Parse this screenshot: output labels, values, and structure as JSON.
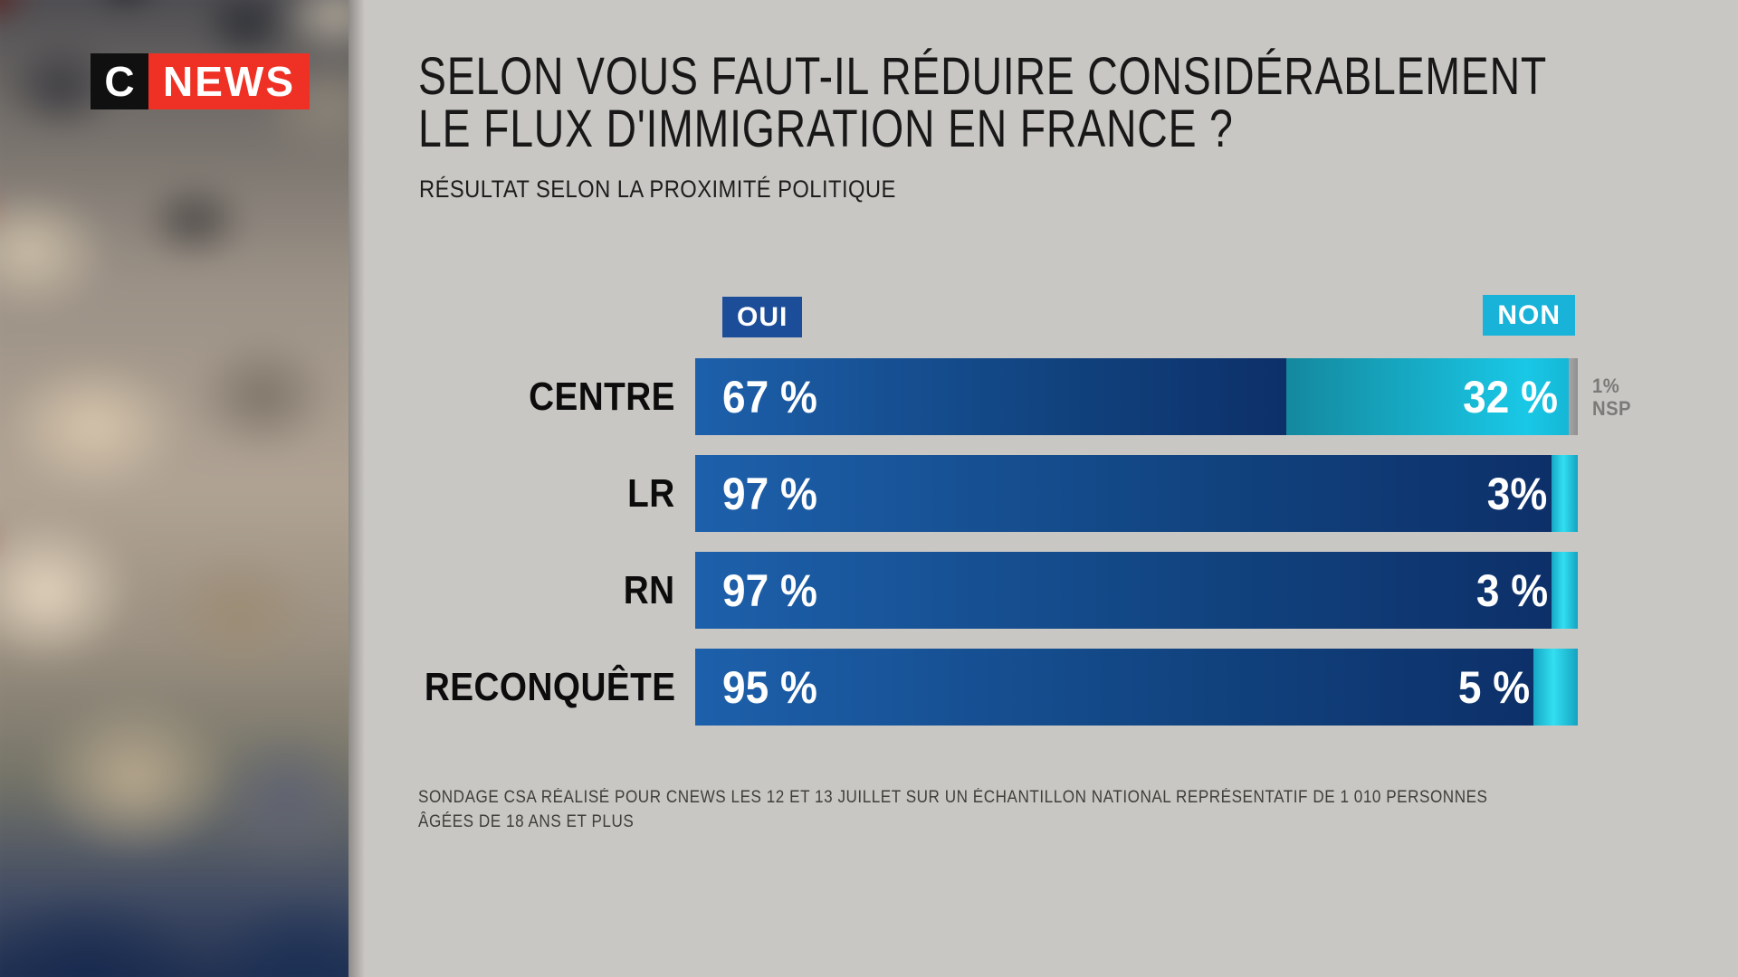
{
  "branding": {
    "logo_c": "C",
    "logo_news": "NEWS"
  },
  "header": {
    "title_line1": "SELON VOUS FAUT-IL RÉDUIRE CONSIDÉRABLEMENT",
    "title_line2": "LE FLUX D'IMMIGRATION EN FRANCE ?",
    "subtitle": "RÉSULTAT SELON LA PROXIMITÉ POLITIQUE"
  },
  "legend": {
    "oui_label": "OUI",
    "non_label": "NON",
    "oui_color": "#1c4d99",
    "non_color": "#19b2d8"
  },
  "chart_data": {
    "type": "bar",
    "orientation": "horizontal",
    "stacked": true,
    "xlim": [
      0,
      100
    ],
    "legend_position": "top",
    "title": "SELON VOUS FAUT-IL RÉDUIRE CONSIDÉRABLEMENT LE FLUX D'IMMIGRATION EN FRANCE ?",
    "subtitle": "RÉSULTAT SELON LA PROXIMITÉ POLITIQUE",
    "categories": [
      "CENTRE",
      "LR",
      "RN",
      "RECONQUÊTE"
    ],
    "series": [
      {
        "name": "OUI",
        "values": [
          67,
          97,
          97,
          95
        ]
      },
      {
        "name": "NON",
        "values": [
          32,
          3,
          3,
          5
        ]
      },
      {
        "name": "NSP",
        "values": [
          1,
          0,
          0,
          0
        ]
      }
    ],
    "value_labels": {
      "OUI": [
        "67 %",
        "97 %",
        "97 %",
        "95 %"
      ],
      "NON": [
        "32 %",
        "3%",
        "3 %",
        "5 %"
      ]
    },
    "annotations": [
      {
        "category": "CENTRE",
        "line1": "1%",
        "line2": "NSP"
      }
    ],
    "colors": {
      "oui_gradient": [
        "#1d60ab",
        "#11437f",
        "#0d3069"
      ],
      "non_gradient": [
        "#14889e",
        "#19c8e6",
        "#15b7d6"
      ],
      "non_tip_gradient": [
        "#16a7c4",
        "#33dff2",
        "#14a3c0"
      ],
      "nsp_color": "#8f8f8f",
      "annotation_text": "#7c7a78"
    }
  },
  "footer": {
    "line1": "SONDAGE CSA RÉALISÉ POUR CNEWS LES 12 ET 13 JUILLET SUR UN ÉCHANTILLON NATIONAL REPRÉSENTATIF DE 1 010 PERSONNES",
    "line2": "ÂGÉES DE 18 ANS ET PLUS"
  }
}
